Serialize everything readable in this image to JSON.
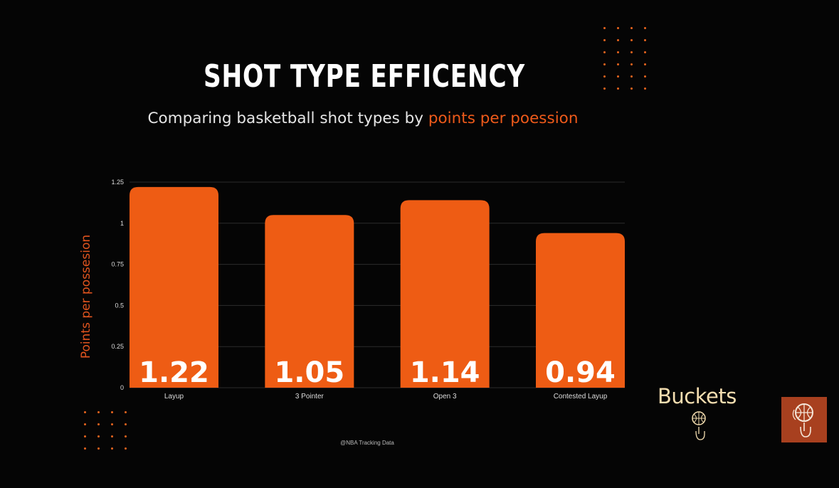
{
  "title": "SHOT TYPE EFFICENCY",
  "subtitle": {
    "prefix": "Comparing basketball shot types by ",
    "highlight": "points per poession"
  },
  "source": "@NBA Tracking Data",
  "brand": {
    "name": "Buckets"
  },
  "colors": {
    "bar": "#ee5c14",
    "highlight": "#ee5a1a",
    "axis_label": "#e0541e",
    "background": "#050505",
    "logo_bg": "#a8401f"
  },
  "chart_data": {
    "type": "bar",
    "categories": [
      "Layup",
      "3 Pointer",
      "Open 3",
      "Contested Layup"
    ],
    "values": [
      1.22,
      1.05,
      1.14,
      0.94
    ],
    "data_labels": [
      "1.22",
      "1.05",
      "1.14",
      "0.94"
    ],
    "ylabel": "Points per possesion",
    "xlabel": "",
    "ylim": [
      0,
      1.25
    ],
    "yticks": [
      0,
      0.25,
      0.5,
      0.75,
      1,
      1.25
    ],
    "ytick_labels": [
      "0",
      "0.25",
      "0.5",
      "0.75",
      "1",
      "1.25"
    ],
    "grid": true,
    "legend": "none"
  }
}
